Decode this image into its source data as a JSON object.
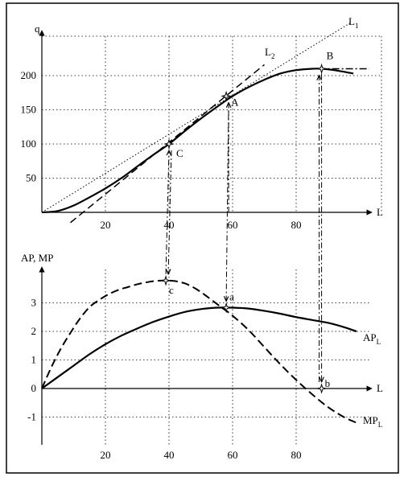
{
  "chart_data": [
    {
      "type": "line",
      "ylabel": "q",
      "xlabel": "L",
      "xticks": [
        20,
        40,
        60,
        80
      ],
      "yticks": [
        50,
        100,
        150,
        200
      ],
      "xlim": [
        0,
        100
      ],
      "ylim": [
        0,
        245
      ],
      "grid": "dotted",
      "series": [
        {
          "name": "q",
          "x": [
            0,
            5,
            10,
            15,
            20,
            25,
            30,
            35,
            40,
            45,
            50,
            55,
            60,
            65,
            70,
            75,
            80,
            85,
            88,
            92,
            98
          ],
          "y": [
            0,
            2,
            10,
            22,
            35,
            50,
            67,
            84,
            100,
            119,
            137,
            154,
            170,
            183,
            194,
            203,
            208,
            210,
            210,
            208,
            203
          ]
        }
      ],
      "lines": [
        {
          "name": "L",
          "sub": "1",
          "x": [
            0,
            97
          ],
          "y": [
            0,
            277
          ]
        },
        {
          "name": "L",
          "sub": "2",
          "x": [
            9,
            70
          ],
          "y": [
            -15,
            216
          ]
        },
        {
          "name": "",
          "x": [
            87,
            103
          ],
          "y": [
            210,
            210
          ]
        }
      ],
      "points": [
        {
          "label": "A",
          "x": 58,
          "y": 170
        },
        {
          "label": "B",
          "x": 88,
          "y": 210
        },
        {
          "label": "C",
          "x": 40,
          "y": 100
        }
      ]
    },
    {
      "type": "line",
      "ylabel": "AP, MP",
      "xlabel": "L",
      "xticks": [
        20,
        40,
        60,
        80
      ],
      "yticks": [
        -1,
        0,
        1,
        2,
        3
      ],
      "xlim": [
        0,
        100
      ],
      "ylim": [
        -2,
        4
      ],
      "grid": "dotted",
      "series": [
        {
          "name": "AP",
          "sub": "L",
          "x": [
            0,
            5,
            10,
            15,
            20,
            25,
            30,
            35,
            40,
            45,
            50,
            55,
            60,
            65,
            70,
            75,
            80,
            85,
            90,
            95,
            99
          ],
          "y": [
            0,
            0.4,
            0.8,
            1.2,
            1.55,
            1.85,
            2.1,
            2.33,
            2.52,
            2.68,
            2.78,
            2.83,
            2.83,
            2.8,
            2.72,
            2.62,
            2.5,
            2.4,
            2.3,
            2.15,
            2.0
          ]
        },
        {
          "name": "MP",
          "sub": "L",
          "x": [
            0,
            3,
            6,
            9,
            12,
            15,
            18,
            21,
            24,
            27,
            30,
            33,
            36,
            39,
            42,
            45,
            48,
            51,
            54,
            57,
            60,
            65,
            70,
            75,
            80,
            85,
            90,
            95,
            99
          ],
          "y": [
            0,
            0.75,
            1.4,
            1.95,
            2.45,
            2.85,
            3.1,
            3.3,
            3.45,
            3.55,
            3.65,
            3.72,
            3.77,
            3.78,
            3.76,
            3.68,
            3.52,
            3.3,
            3.05,
            2.8,
            2.55,
            2.05,
            1.45,
            0.85,
            0.3,
            -0.2,
            -0.65,
            -1.0,
            -1.2
          ]
        }
      ],
      "points": [
        {
          "label": "a",
          "x": 58,
          "y": 2.83
        },
        {
          "label": "b",
          "x": 88,
          "y": 0
        },
        {
          "label": "c",
          "x": 39,
          "y": 3.78
        }
      ]
    }
  ]
}
